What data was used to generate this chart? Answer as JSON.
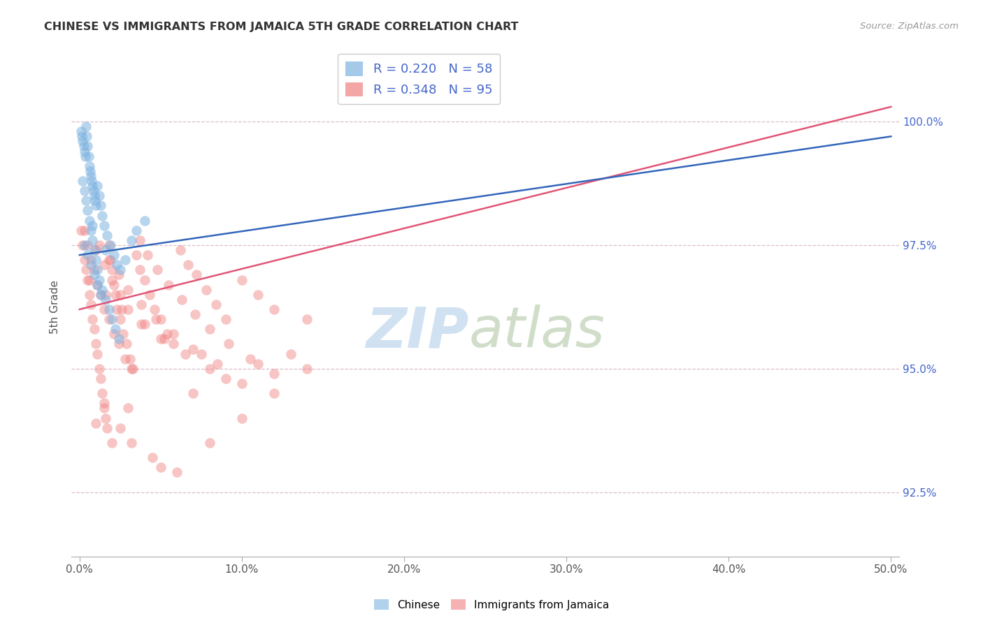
{
  "title": "CHINESE VS IMMIGRANTS FROM JAMAICA 5TH GRADE CORRELATION CHART",
  "source": "Source: ZipAtlas.com",
  "ylabel": "5th Grade",
  "x_ticks": [
    0.0,
    10.0,
    20.0,
    30.0,
    40.0,
    50.0
  ],
  "y_ticks": [
    92.5,
    95.0,
    97.5,
    100.0
  ],
  "xlim": [
    -0.5,
    50.5
  ],
  "ylim": [
    91.2,
    101.3
  ],
  "chinese_color": "#7EB3E0",
  "jamaica_color": "#F08080",
  "chinese_line_color": "#3366BB",
  "jamaica_line_color": "#E05577",
  "legend_chinese_R": "0.220",
  "legend_chinese_N": "58",
  "legend_jamaica_R": "0.348",
  "legend_jamaica_N": "95",
  "chinese_x": [
    0.1,
    0.15,
    0.2,
    0.25,
    0.3,
    0.35,
    0.4,
    0.45,
    0.5,
    0.55,
    0.6,
    0.65,
    0.7,
    0.75,
    0.8,
    0.85,
    0.9,
    0.95,
    1.0,
    1.1,
    1.2,
    1.3,
    1.4,
    1.5,
    1.7,
    1.9,
    2.1,
    2.3,
    2.5,
    2.8,
    0.2,
    0.3,
    0.4,
    0.5,
    0.6,
    0.7,
    0.8,
    0.9,
    1.0,
    1.1,
    1.2,
    1.4,
    1.6,
    1.8,
    2.0,
    2.2,
    2.4,
    0.3,
    0.5,
    0.7,
    0.9,
    1.1,
    1.3,
    3.5,
    4.0,
    0.8,
    1.6,
    3.2
  ],
  "chinese_y": [
    99.8,
    99.7,
    99.6,
    99.5,
    99.4,
    99.3,
    99.9,
    99.7,
    99.5,
    99.3,
    99.1,
    99.0,
    98.9,
    98.8,
    98.7,
    98.6,
    98.5,
    98.4,
    98.3,
    98.7,
    98.5,
    98.3,
    98.1,
    97.9,
    97.7,
    97.5,
    97.3,
    97.1,
    97.0,
    97.2,
    98.8,
    98.6,
    98.4,
    98.2,
    98.0,
    97.8,
    97.6,
    97.4,
    97.2,
    97.0,
    96.8,
    96.6,
    96.4,
    96.2,
    96.0,
    95.8,
    95.6,
    97.5,
    97.3,
    97.1,
    96.9,
    96.7,
    96.5,
    97.8,
    98.0,
    97.9,
    97.4,
    97.6
  ],
  "jamaica_x": [
    0.1,
    0.2,
    0.3,
    0.4,
    0.5,
    0.6,
    0.7,
    0.8,
    0.9,
    1.0,
    1.1,
    1.2,
    1.3,
    1.4,
    1.5,
    1.6,
    1.7,
    1.8,
    1.9,
    2.0,
    2.1,
    2.2,
    2.3,
    2.5,
    2.7,
    2.9,
    3.1,
    3.3,
    3.5,
    3.7,
    4.0,
    4.3,
    4.6,
    5.0,
    5.4,
    5.8,
    6.2,
    6.7,
    7.2,
    7.8,
    8.4,
    9.0,
    10.0,
    11.0,
    12.0,
    14.0,
    0.3,
    0.5,
    0.7,
    0.9,
    1.1,
    1.3,
    1.5,
    1.8,
    2.1,
    2.4,
    2.8,
    3.2,
    3.7,
    4.2,
    4.8,
    5.5,
    6.3,
    7.1,
    8.0,
    9.2,
    10.5,
    12.0,
    1.0,
    1.5,
    2.0,
    2.5,
    3.0,
    4.0,
    5.0,
    6.5,
    8.0,
    10.0,
    1.2,
    1.8,
    2.4,
    3.0,
    3.8,
    4.7,
    5.8,
    7.0,
    8.5,
    0.6,
    1.6,
    2.6,
    3.8,
    5.2,
    7.5
  ],
  "jamaica_y": [
    97.8,
    97.5,
    97.2,
    97.0,
    96.8,
    96.5,
    96.3,
    96.0,
    95.8,
    95.5,
    95.3,
    95.0,
    94.8,
    94.5,
    94.3,
    94.0,
    93.8,
    97.5,
    97.2,
    97.0,
    96.7,
    96.5,
    96.2,
    96.0,
    95.7,
    95.5,
    95.2,
    95.0,
    97.3,
    97.0,
    96.8,
    96.5,
    96.2,
    96.0,
    95.7,
    95.5,
    97.4,
    97.1,
    96.9,
    96.6,
    96.3,
    96.0,
    96.8,
    96.5,
    96.2,
    96.0,
    97.8,
    97.5,
    97.2,
    97.0,
    96.7,
    96.5,
    96.2,
    96.0,
    95.7,
    95.5,
    95.2,
    95.0,
    97.6,
    97.3,
    97.0,
    96.7,
    96.4,
    96.1,
    95.8,
    95.5,
    95.2,
    94.9,
    97.4,
    97.1,
    96.8,
    96.5,
    96.2,
    95.9,
    95.6,
    95.3,
    95.0,
    94.7,
    97.5,
    97.2,
    96.9,
    96.6,
    96.3,
    96.0,
    95.7,
    95.4,
    95.1,
    96.8,
    96.5,
    96.2,
    95.9,
    95.6,
    95.3
  ],
  "jamaica_low_x": [
    1.5,
    2.5,
    3.2,
    4.5,
    6.0,
    8.0,
    10.0,
    12.0,
    14.0,
    1.0,
    2.0,
    3.0,
    5.0,
    7.0,
    9.0,
    11.0,
    13.0
  ],
  "jamaica_low_y": [
    94.2,
    93.8,
    93.5,
    93.2,
    92.9,
    93.5,
    94.0,
    94.5,
    95.0,
    93.9,
    93.5,
    94.2,
    93.0,
    94.5,
    94.8,
    95.1,
    95.3
  ],
  "blue_line_x0": 0.0,
  "blue_line_y0": 97.3,
  "blue_line_x1": 50.0,
  "blue_line_y1": 99.7,
  "pink_line_x0": 0.0,
  "pink_line_y0": 96.2,
  "pink_line_x1": 50.0,
  "pink_line_y1": 100.3
}
